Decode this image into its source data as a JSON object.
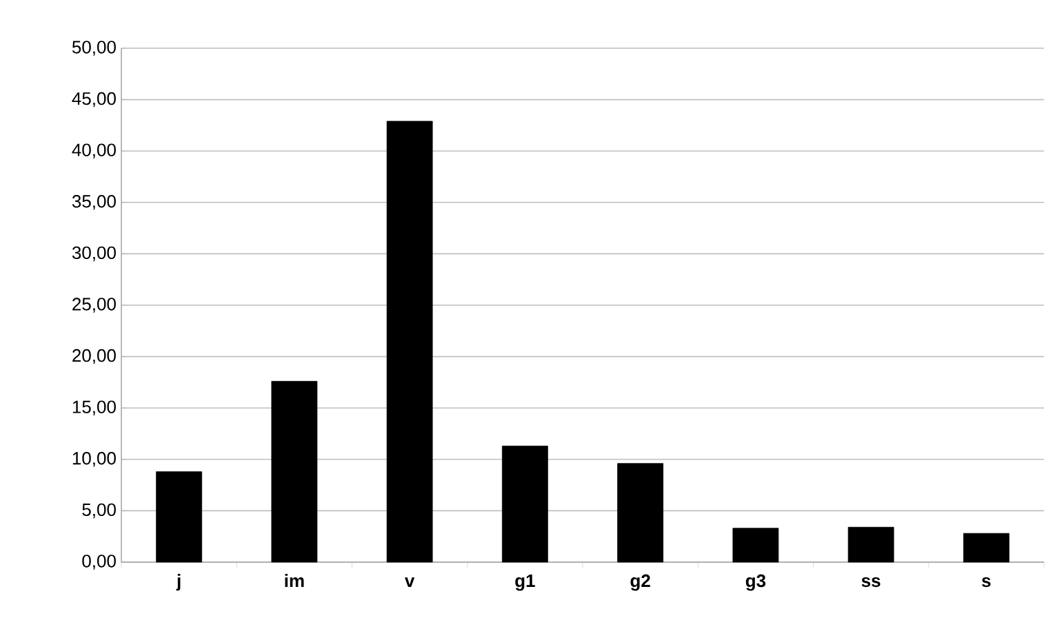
{
  "chart_data": {
    "type": "bar",
    "categories": [
      "j",
      "im",
      "v",
      "g1",
      "g2",
      "g3",
      "ss",
      "s"
    ],
    "values": [
      8.8,
      17.6,
      42.9,
      11.3,
      9.6,
      3.3,
      3.4,
      2.8
    ],
    "color": "#000000",
    "ylim": [
      0,
      50
    ],
    "yticks": [
      {
        "value": 0,
        "label": "0,00"
      },
      {
        "value": 5,
        "label": "5,00"
      },
      {
        "value": 10,
        "label": "10,00"
      },
      {
        "value": 15,
        "label": "15,00"
      },
      {
        "value": 20,
        "label": "20,00"
      },
      {
        "value": 25,
        "label": "25,00"
      },
      {
        "value": 30,
        "label": "30,00"
      },
      {
        "value": 35,
        "label": "35,00"
      },
      {
        "value": 40,
        "label": "40,00"
      },
      {
        "value": 45,
        "label": "45,00"
      },
      {
        "value": 50,
        "label": "50,00"
      }
    ],
    "grid": "y"
  }
}
